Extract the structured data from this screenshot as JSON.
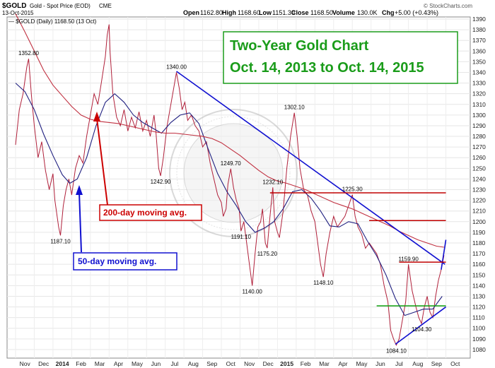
{
  "header": {
    "symbol": "$GOLD",
    "description": "Gold - Spot Price (EOD)",
    "exchange": "CME",
    "date": "13-Oct-2015",
    "open_label": "Open",
    "open": "1162.80",
    "high_label": "High",
    "high": "1168.60",
    "low_label": "Low",
    "low": "1151.30",
    "close_label": "Close",
    "close": "1168.50",
    "volume_label": "Volume",
    "volume": "130.0K",
    "chg_label": "Chg",
    "chg": "+5.00 (+0.43%)",
    "brand": "© StockCharts.com",
    "legend": "— $GOLD (Daily) 1168.50 (13 Oct)"
  },
  "title_box": {
    "line1": "Two-Year Gold Chart",
    "line2": "Oct. 14, 2013 to Oct. 14, 2015"
  },
  "annotations": {
    "ma200": "200-day moving avg.",
    "ma50": "50-day moving avg."
  },
  "colors": {
    "price": "#b0203a",
    "ma50": "#202080",
    "ma200": "#c03040",
    "trend": "#1010d0",
    "resistance": "#c00000",
    "support": "#10a010",
    "title_green": "#1a9c1a",
    "ann200": "#cc0000",
    "ann50": "#1010d0"
  },
  "chart_data": {
    "type": "line",
    "ylim": [
      1072,
      1392
    ],
    "yticks": [
      1080,
      1090,
      1100,
      1110,
      1120,
      1130,
      1140,
      1150,
      1160,
      1170,
      1180,
      1190,
      1200,
      1210,
      1220,
      1230,
      1240,
      1250,
      1260,
      1270,
      1280,
      1290,
      1300,
      1310,
      1320,
      1330,
      1340,
      1350,
      1360,
      1370,
      1380,
      1390
    ],
    "xticks": [
      "Nov",
      "Dec",
      "2014",
      "Feb",
      "Mar",
      "Apr",
      "May",
      "Jun",
      "Jul",
      "Aug",
      "Sep",
      "Oct",
      "Nov",
      "Dec",
      "2015",
      "Feb",
      "Mar",
      "Apr",
      "May",
      "Jun",
      "Jul",
      "Aug",
      "Sep",
      "Oct"
    ],
    "xtick_bold": [
      "2014",
      "2015"
    ],
    "x_unit": "months from Oct 14, 2013",
    "xlim": [
      0,
      24
    ],
    "series": [
      {
        "key": "price",
        "points": [
          [
            0,
            1272
          ],
          [
            0.2,
            1305
          ],
          [
            0.4,
            1320
          ],
          [
            0.6,
            1345
          ],
          [
            0.7,
            1352.8
          ],
          [
            0.85,
            1318
          ],
          [
            1.0,
            1290
          ],
          [
            1.2,
            1260
          ],
          [
            1.4,
            1275
          ],
          [
            1.6,
            1248
          ],
          [
            1.8,
            1230
          ],
          [
            2.0,
            1245
          ],
          [
            2.1,
            1220
          ],
          [
            2.3,
            1195
          ],
          [
            2.4,
            1187.1
          ],
          [
            2.55,
            1215
          ],
          [
            2.7,
            1230
          ],
          [
            2.85,
            1240
          ],
          [
            3.0,
            1225
          ],
          [
            3.2,
            1250
          ],
          [
            3.4,
            1262
          ],
          [
            3.6,
            1255
          ],
          [
            3.8,
            1280
          ],
          [
            4.0,
            1300
          ],
          [
            4.2,
            1320
          ],
          [
            4.4,
            1310
          ],
          [
            4.6,
            1332
          ],
          [
            4.8,
            1355
          ],
          [
            4.9,
            1375
          ],
          [
            5.0,
            1385
          ],
          [
            5.05,
            1360
          ],
          [
            5.2,
            1320
          ],
          [
            5.4,
            1298
          ],
          [
            5.6,
            1290
          ],
          [
            5.8,
            1305
          ],
          [
            6.0,
            1285
          ],
          [
            6.2,
            1298
          ],
          [
            6.4,
            1288
          ],
          [
            6.6,
            1303
          ],
          [
            6.8,
            1285
          ],
          [
            7.0,
            1295
          ],
          [
            7.2,
            1280
          ],
          [
            7.4,
            1300
          ],
          [
            7.5,
            1285
          ],
          [
            7.65,
            1250
          ],
          [
            7.75,
            1242.9
          ],
          [
            7.9,
            1260
          ],
          [
            8.1,
            1290
          ],
          [
            8.3,
            1310
          ],
          [
            8.45,
            1325
          ],
          [
            8.6,
            1340
          ],
          [
            8.75,
            1325
          ],
          [
            8.9,
            1305
          ],
          [
            9.05,
            1312
          ],
          [
            9.2,
            1295
          ],
          [
            9.4,
            1300
          ],
          [
            9.6,
            1290
          ],
          [
            9.8,
            1285
          ],
          [
            10.0,
            1270
          ],
          [
            10.2,
            1275
          ],
          [
            10.4,
            1255
          ],
          [
            10.6,
            1240
          ],
          [
            10.8,
            1225
          ],
          [
            11.0,
            1218
          ],
          [
            11.1,
            1205
          ],
          [
            11.25,
            1212
          ],
          [
            11.35,
            1235
          ],
          [
            11.5,
            1249.7
          ],
          [
            11.65,
            1232
          ],
          [
            11.8,
            1220
          ],
          [
            11.95,
            1212
          ],
          [
            12.05,
            1191.1
          ],
          [
            12.2,
            1200
          ],
          [
            12.35,
            1180
          ],
          [
            12.5,
            1160
          ],
          [
            12.65,
            1140
          ],
          [
            12.8,
            1170
          ],
          [
            12.95,
            1195
          ],
          [
            13.1,
            1200
          ],
          [
            13.2,
            1212
          ],
          [
            13.35,
            1180
          ],
          [
            13.45,
            1175.2
          ],
          [
            13.6,
            1205
          ],
          [
            13.75,
            1232.1
          ],
          [
            13.85,
            1200
          ],
          [
            14.0,
            1190
          ],
          [
            14.1,
            1185
          ],
          [
            14.3,
            1210
          ],
          [
            14.5,
            1250
          ],
          [
            14.7,
            1280
          ],
          [
            14.9,
            1302.1
          ],
          [
            15.05,
            1280
          ],
          [
            15.2,
            1250
          ],
          [
            15.4,
            1230
          ],
          [
            15.6,
            1225
          ],
          [
            15.8,
            1210
          ],
          [
            16.0,
            1200
          ],
          [
            16.15,
            1180
          ],
          [
            16.3,
            1160
          ],
          [
            16.45,
            1148.1
          ],
          [
            16.6,
            1170
          ],
          [
            16.8,
            1190
          ],
          [
            17.0,
            1205
          ],
          [
            17.2,
            1195
          ],
          [
            17.4,
            1200
          ],
          [
            17.6,
            1205
          ],
          [
            17.8,
            1215
          ],
          [
            18.0,
            1225.3
          ],
          [
            18.15,
            1205
          ],
          [
            18.3,
            1195
          ],
          [
            18.5,
            1188
          ],
          [
            18.7,
            1175
          ],
          [
            18.9,
            1180
          ],
          [
            19.1,
            1175
          ],
          [
            19.3,
            1170
          ],
          [
            19.5,
            1160
          ],
          [
            19.7,
            1140
          ],
          [
            19.9,
            1125
          ],
          [
            20.05,
            1098
          ],
          [
            20.2,
            1090
          ],
          [
            20.35,
            1084.1
          ],
          [
            20.5,
            1090
          ],
          [
            20.7,
            1110
          ],
          [
            20.85,
            1125
          ],
          [
            21.0,
            1160
          ],
          [
            21.2,
            1135
          ],
          [
            21.4,
            1120
          ],
          [
            21.55,
            1110
          ],
          [
            21.7,
            1104.3
          ],
          [
            21.85,
            1120
          ],
          [
            22.0,
            1130
          ],
          [
            22.15,
            1115
          ],
          [
            22.3,
            1110
          ],
          [
            22.45,
            1130
          ],
          [
            22.6,
            1145
          ],
          [
            22.75,
            1155
          ],
          [
            22.9,
            1168.5
          ]
        ]
      },
      {
        "key": "ma50",
        "points": [
          [
            0,
            1330
          ],
          [
            0.5,
            1322
          ],
          [
            1.0,
            1305
          ],
          [
            1.5,
            1282
          ],
          [
            2.0,
            1262
          ],
          [
            2.5,
            1244
          ],
          [
            2.9,
            1236
          ],
          [
            3.3,
            1240
          ],
          [
            3.8,
            1260
          ],
          [
            4.3,
            1290
          ],
          [
            4.8,
            1312
          ],
          [
            5.3,
            1320
          ],
          [
            5.8,
            1312
          ],
          [
            6.3,
            1300
          ],
          [
            6.8,
            1293
          ],
          [
            7.3,
            1288
          ],
          [
            7.8,
            1283
          ],
          [
            8.3,
            1293
          ],
          [
            8.8,
            1300
          ],
          [
            9.3,
            1302
          ],
          [
            9.8,
            1292
          ],
          [
            10.3,
            1268
          ],
          [
            10.8,
            1245
          ],
          [
            11.3,
            1228
          ],
          [
            11.8,
            1215
          ],
          [
            12.3,
            1200
          ],
          [
            12.8,
            1190
          ],
          [
            13.3,
            1194
          ],
          [
            13.8,
            1200
          ],
          [
            14.3,
            1212
          ],
          [
            14.8,
            1228
          ],
          [
            15.3,
            1230
          ],
          [
            15.8,
            1222
          ],
          [
            16.3,
            1210
          ],
          [
            16.8,
            1196
          ],
          [
            17.3,
            1195
          ],
          [
            17.8,
            1200
          ],
          [
            18.3,
            1198
          ],
          [
            18.8,
            1182
          ],
          [
            19.3,
            1168
          ],
          [
            19.8,
            1150
          ],
          [
            20.3,
            1128
          ],
          [
            20.8,
            1112
          ],
          [
            21.3,
            1115
          ],
          [
            21.8,
            1118
          ],
          [
            22.3,
            1118
          ],
          [
            22.8,
            1130
          ]
        ]
      },
      {
        "key": "ma200",
        "points": [
          [
            0,
            1395
          ],
          [
            0.5,
            1378
          ],
          [
            1.0,
            1360
          ],
          [
            1.5,
            1342
          ],
          [
            2.0,
            1328
          ],
          [
            2.5,
            1318
          ],
          [
            3.0,
            1308
          ],
          [
            3.5,
            1300
          ],
          [
            4.0,
            1296
          ],
          [
            4.5,
            1294
          ],
          [
            5.0,
            1293
          ],
          [
            5.5,
            1292
          ],
          [
            6.0,
            1290
          ],
          [
            6.5,
            1288
          ],
          [
            7.0,
            1286
          ],
          [
            7.5,
            1284
          ],
          [
            8.0,
            1283
          ],
          [
            8.5,
            1283
          ],
          [
            9.0,
            1282
          ],
          [
            9.5,
            1281
          ],
          [
            10.0,
            1280
          ],
          [
            10.5,
            1278
          ],
          [
            11.0,
            1274
          ],
          [
            11.5,
            1268
          ],
          [
            12.0,
            1262
          ],
          [
            12.5,
            1255
          ],
          [
            13.0,
            1248
          ],
          [
            13.5,
            1242
          ],
          [
            14.0,
            1238
          ],
          [
            14.5,
            1236
          ],
          [
            15.0,
            1233
          ],
          [
            15.5,
            1230
          ],
          [
            16.0,
            1226
          ],
          [
            16.5,
            1222
          ],
          [
            17.0,
            1218
          ],
          [
            17.5,
            1215
          ],
          [
            18.0,
            1212
          ],
          [
            18.5,
            1208
          ],
          [
            19.0,
            1204
          ],
          [
            19.5,
            1200
          ],
          [
            20.0,
            1196
          ],
          [
            20.5,
            1191
          ],
          [
            21.0,
            1187
          ],
          [
            21.5,
            1183
          ],
          [
            22.0,
            1180
          ],
          [
            22.5,
            1177
          ],
          [
            22.9,
            1176
          ]
        ]
      }
    ],
    "lines": [
      {
        "key": "trend",
        "kind": "downtrend",
        "from": [
          8.6,
          1341
        ],
        "to": [
          22.95,
          1160
        ]
      },
      {
        "key": "trend",
        "kind": "uptrend",
        "from": [
          20.3,
          1085
        ],
        "to": [
          23.0,
          1120
        ]
      },
      {
        "key": "trend",
        "kind": "spike",
        "from": [
          22.75,
          1155
        ],
        "to": [
          23.0,
          1183
        ]
      },
      {
        "key": "resistance",
        "kind": "resistance",
        "from": [
          13.6,
          1227
        ],
        "to": [
          23.0,
          1227
        ]
      },
      {
        "key": "resistance",
        "kind": "resistance",
        "from": [
          18.9,
          1201
        ],
        "to": [
          23.0,
          1201
        ]
      },
      {
        "key": "resistance",
        "kind": "resistance",
        "from": [
          20.5,
          1162
        ],
        "to": [
          23.0,
          1162
        ]
      },
      {
        "key": "support",
        "kind": "support",
        "from": [
          19.3,
          1121
        ],
        "to": [
          23.0,
          1121
        ]
      }
    ],
    "price_labels": [
      {
        "text": "1352.80",
        "x": 0.7,
        "y": 1352.8,
        "pos": "above"
      },
      {
        "text": "1187.10",
        "x": 2.4,
        "y": 1187.1,
        "pos": "below"
      },
      {
        "text": "1242.90",
        "x": 7.75,
        "y": 1242.9,
        "pos": "below"
      },
      {
        "text": "1340.00",
        "x": 8.6,
        "y": 1340,
        "pos": "above"
      },
      {
        "text": "1249.70",
        "x": 11.5,
        "y": 1249.7,
        "pos": "above"
      },
      {
        "text": "1191.10",
        "x": 12.05,
        "y": 1191.1,
        "pos": "below"
      },
      {
        "text": "1140.00",
        "x": 12.65,
        "y": 1140,
        "pos": "below"
      },
      {
        "text": "1232.10",
        "x": 13.75,
        "y": 1232.1,
        "pos": "above"
      },
      {
        "text": "1175.20",
        "x": 13.45,
        "y": 1175.2,
        "pos": "below"
      },
      {
        "text": "1302.10",
        "x": 14.9,
        "y": 1302.1,
        "pos": "above"
      },
      {
        "text": "1148.10",
        "x": 16.45,
        "y": 1148.1,
        "pos": "below"
      },
      {
        "text": "1225.30",
        "x": 18.0,
        "y": 1225.3,
        "pos": "above"
      },
      {
        "text": "1159.90",
        "x": 21.0,
        "y": 1159.9,
        "pos": "above"
      },
      {
        "text": "1104.30",
        "x": 21.7,
        "y": 1104.3,
        "pos": "below"
      },
      {
        "text": "1084.10",
        "x": 20.35,
        "y": 1084.1,
        "pos": "below"
      }
    ]
  }
}
